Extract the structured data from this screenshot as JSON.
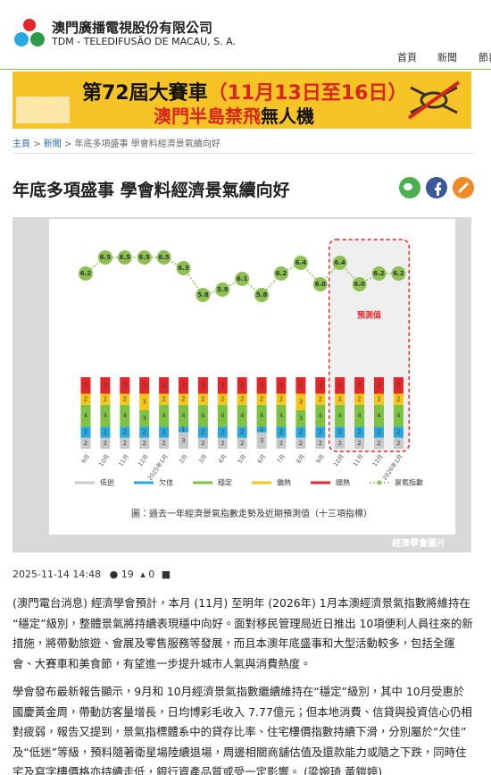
{
  "header": {
    "company_zh": "澳門廣播電視股份有限公司",
    "company_pt": "TDM - TELEDIFUSÃO DE MACAU, S. A."
  },
  "nav": [
    "首頁",
    "新聞",
    "節目"
  ],
  "banner": {
    "line1a": "第72屆大賽車",
    "line1b": "（11月13日至16日）",
    "line2a": "澳門半島禁飛",
    "line2b": "無人機"
  },
  "breadcrumb": {
    "items": [
      "主頁",
      "新聞",
      "年底多項盛事 學會料經濟景氣續向好"
    ],
    "separator": ">"
  },
  "article": {
    "title": "年底多項盛事 學會料經濟景氣續向好",
    "date": "2025-11-14 14:48",
    "views": 19,
    "likes": 0,
    "paragraphs": [
      "(澳門電台消息) 經濟學會預計，本月 (11月) 至明年 (2026年) 1月本澳經濟景氣指數將維持在“穩定”級別，整體景氣將持續表現穩中向好。面對移民管理局近日推出 10項便利人員往來的新措施，將帶動旅遊、會展及零售服務等發展，而且本澳年底盛事和大型活動較多，包括全運會、大賽車和美食節，有望進一步提升城市人氣與消費熱度。",
      "學會發布最新報告顯示，9月和 10月經濟景氣指數繼續維持在“穩定”級別，其中 10月受惠於國慶黃金周，帶動訪客量增長，日均博彩毛收入 7.77億元；但本地消費、信貸與投資信心仍相對疲弱，報告又提到，景氣指標體系中的貸存比率、住宅樓價指數持續下滑，分別屬於“欠佳”及“低迷”等級，預料隨著衛星場陸續退場，周邊相關商舖估值及還款能力或隨之下跌，同時住宅及寫字樓價格亦持續走低，銀行資產品質或受一定影響。 (梁婉琦 黃鎧婷)"
    ]
  },
  "figure": {
    "caption": "圖：過去一年經濟景氣指數走勢及近期預測值（十三項指標）",
    "credit": "經濟學會圖片"
  },
  "chart_data": {
    "type": "bar",
    "stacked": true,
    "annotation": "預測值",
    "categories": [
      "9月",
      "10月",
      "11月",
      "12月",
      "2025年1月",
      "2月",
      "3月",
      "4月",
      "5月",
      "6月",
      "7月",
      "8月",
      "9月",
      "10月",
      "11月",
      "12月",
      "2026年1月"
    ],
    "ylim": [
      5.4,
      6.8
    ],
    "y2lim": [
      0,
      13
    ],
    "series": [
      {
        "name": "低迷",
        "color": "#c8c8c8",
        "axis": "y2",
        "values": [
          2,
          2,
          2,
          2,
          2,
          3,
          2,
          2,
          2,
          3,
          2,
          2,
          2,
          2,
          2,
          2,
          2
        ]
      },
      {
        "name": "欠佳",
        "color": "#29a8e0",
        "axis": "y2",
        "values": [
          2,
          2,
          2,
          2,
          2,
          1,
          2,
          2,
          2,
          1,
          2,
          2,
          2,
          2,
          2,
          2,
          2
        ]
      },
      {
        "name": "穩定",
        "color": "#7dc242",
        "axis": "y2",
        "values": [
          4,
          4,
          4,
          3,
          4,
          4,
          4,
          4,
          4,
          4,
          4,
          3,
          4,
          4,
          4,
          4,
          4
        ]
      },
      {
        "name": "偏熱",
        "color": "#f5c518",
        "axis": "y2",
        "values": [
          2,
          2,
          2,
          3,
          2,
          2,
          2,
          2,
          2,
          2,
          2,
          3,
          2,
          2,
          2,
          2,
          2
        ]
      },
      {
        "name": "過熱",
        "color": "#e3262a",
        "axis": "y2",
        "values": [
          3,
          3,
          3,
          3,
          3,
          3,
          3,
          3,
          3,
          3,
          3,
          3,
          3,
          3,
          3,
          3,
          3
        ]
      },
      {
        "name": "景氣指數",
        "type": "line",
        "color": "#8cc152",
        "values": [
          6.2,
          6.5,
          6.5,
          6.5,
          6.5,
          6.3,
          5.8,
          5.9,
          6.1,
          5.8,
          6.2,
          6.4,
          6,
          6.4,
          6,
          6.2,
          6.2
        ],
        "value_labels": [
          "6.2",
          "6.5",
          "6.5",
          "6.5",
          "6.5",
          "6.3",
          "5.8",
          "5.9",
          "6.1",
          "5.8",
          "6.2",
          "6.4",
          "6.0",
          "6.4",
          "6.0",
          "6.2",
          "6.2"
        ]
      }
    ]
  }
}
